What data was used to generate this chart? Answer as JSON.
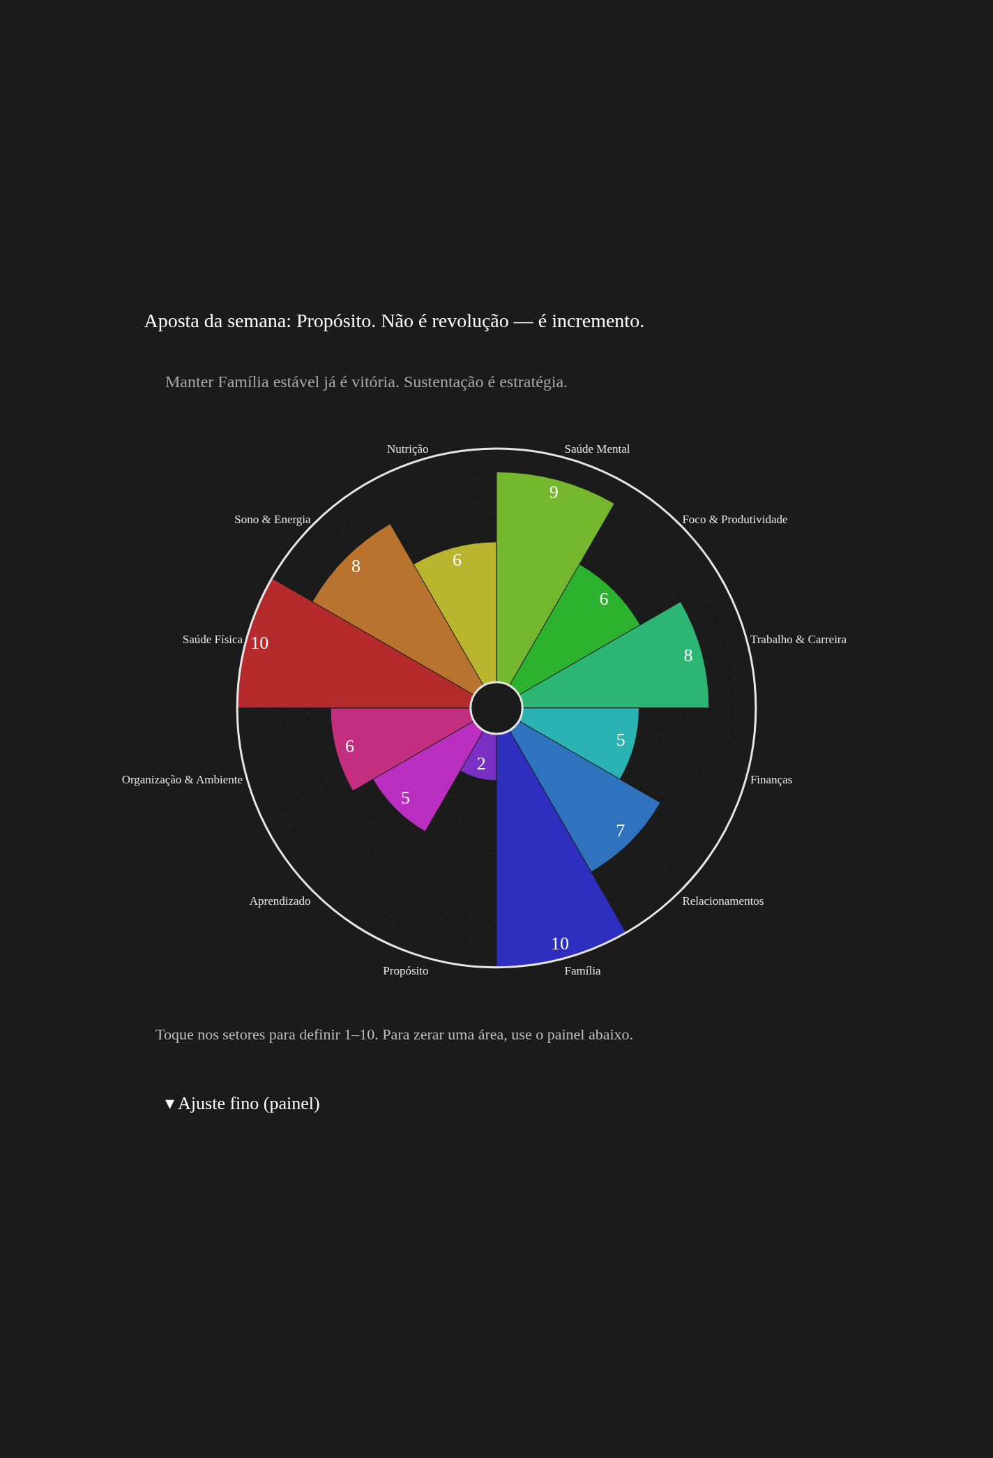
{
  "chart_data": {
    "type": "other",
    "title": "Aposta da semana: Propósito. Não é revolução — é incremento.",
    "subtitle": "Manter Família estável já é vitória. Sustentação é estratégia.",
    "categories": [
      "Saúde Mental",
      "Foco & Produtividade",
      "Trabalho & Carreira",
      "Finanças",
      "Relacionamentos",
      "Família",
      "Propósito",
      "Aprendizado",
      "Organização & Ambiente",
      "Saúde Física",
      "Sono & Energia",
      "Nutrição"
    ],
    "values": [
      9,
      6,
      8,
      5,
      7,
      10,
      2,
      5,
      6,
      10,
      8,
      6
    ],
    "colors": [
      "#74b62e",
      "#2cb22e",
      "#2db573",
      "#2bb3b3",
      "#2f72bd",
      "#2f2fbf",
      "#7a30c2",
      "#bb2fc0",
      "#c22f7e",
      "#b52a2d",
      "#b8732f",
      "#b9b52e"
    ],
    "data_labels": true,
    "annotations": [
      "Toque nos setores para definir 1–10. Para zerar uma área, use o painel abaixo.",
      "▾ Ajuste fino (painel)"
    ]
  }
}
